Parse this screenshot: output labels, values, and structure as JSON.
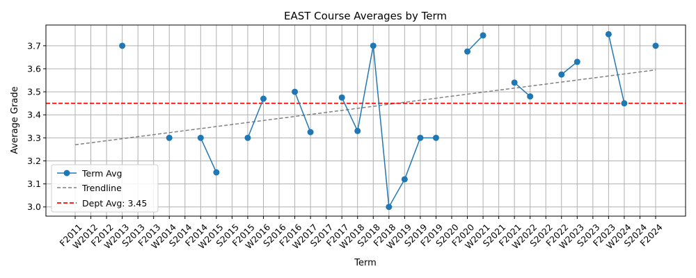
{
  "chart_data": {
    "type": "line",
    "title": "EAST Course Averages by Term",
    "xlabel": "Term",
    "ylabel": "Average Grade",
    "categories": [
      "F2011",
      "W2012",
      "F2012",
      "W2013",
      "S2013",
      "F2013",
      "W2014",
      "S2014",
      "F2014",
      "W2015",
      "S2015",
      "F2015",
      "W2016",
      "S2016",
      "F2016",
      "W2017",
      "S2017",
      "F2017",
      "W2018",
      "S2018",
      "F2018",
      "W2019",
      "S2019",
      "F2019",
      "S2020",
      "F2020",
      "W2021",
      "S2021",
      "F2021",
      "W2022",
      "S2022",
      "F2022",
      "W2023",
      "S2023",
      "F2023",
      "W2024",
      "S2024",
      "F2024"
    ],
    "series": [
      {
        "name": "Term Avg",
        "color": "#1f77b4",
        "values": [
          null,
          null,
          null,
          3.7,
          null,
          null,
          3.3,
          null,
          3.3,
          3.15,
          null,
          3.3,
          3.47,
          null,
          3.5,
          3.325,
          null,
          3.475,
          3.33,
          3.7,
          3.0,
          3.12,
          3.3,
          3.3,
          null,
          3.675,
          3.745,
          null,
          3.54,
          3.48,
          null,
          3.575,
          3.63,
          null,
          3.75,
          3.45,
          null,
          3.7
        ]
      }
    ],
    "trendline": {
      "name": "Trendline",
      "color": "#808080",
      "start": 3.27,
      "end": 3.595
    },
    "reference_line": {
      "name": "Dept Avg: 3.45",
      "value": 3.45,
      "color": "#ff0000"
    },
    "yticks": [
      "3.0",
      "3.1",
      "3.2",
      "3.3",
      "3.4",
      "3.5",
      "3.6",
      "3.7"
    ],
    "ylim": [
      2.96,
      3.79
    ],
    "grid": true,
    "legend_position": "lower-left"
  }
}
